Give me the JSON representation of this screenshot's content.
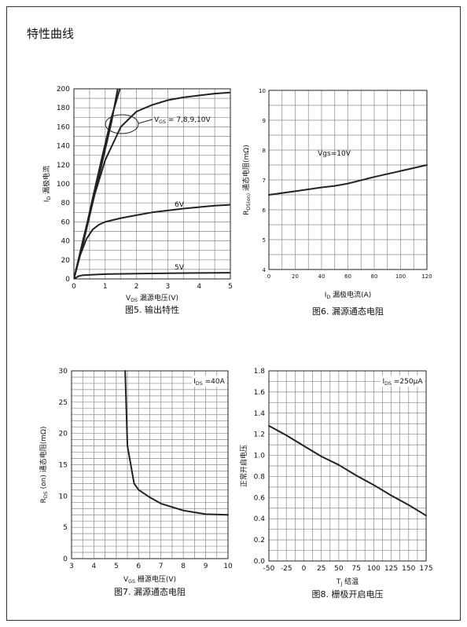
{
  "page": {
    "title": "特性曲线"
  },
  "chart_data": [
    {
      "type": "line",
      "caption": "图5. 输出特性",
      "xlabel": "V DS 漏源电压(V)",
      "ylabel": "I D 漏极电流",
      "xlim": [
        0,
        5
      ],
      "ylim": [
        0,
        200
      ],
      "xticks": [
        0,
        1,
        2,
        3,
        4,
        5
      ],
      "yticks": [
        0,
        20,
        40,
        60,
        80,
        100,
        120,
        140,
        160,
        180,
        200
      ],
      "grid": true,
      "series": [
        {
          "name": "",
          "x": [
            0,
            0.3,
            0.6,
            0.9,
            1.2,
            1.5
          ],
          "y": [
            0,
            40,
            85,
            128,
            170,
            210
          ]
        },
        {
          "name": "",
          "x": [
            0,
            0.3,
            0.6,
            0.9,
            1.2,
            1.4
          ],
          "y": [
            0,
            38,
            80,
            122,
            165,
            200
          ]
        },
        {
          "name": "V GS = 7,8,9,10V",
          "x": [
            0,
            0.3,
            0.6,
            1.0,
            1.5,
            2.0,
            2.5,
            3.0,
            3.5,
            4.0,
            4.5,
            5.0
          ],
          "y": [
            0,
            42,
            82,
            125,
            160,
            176,
            183,
            188,
            191,
            193,
            195,
            196
          ]
        },
        {
          "name": "6V",
          "x": [
            0,
            0.2,
            0.4,
            0.6,
            0.8,
            1.0,
            1.5,
            2.0,
            2.5,
            3.0,
            3.5,
            4.0,
            4.5,
            5.0
          ],
          "y": [
            0,
            25,
            42,
            52,
            57,
            60,
            64,
            67,
            70,
            72,
            74,
            75.5,
            77,
            78
          ]
        },
        {
          "name": "5V",
          "x": [
            0,
            0.15,
            0.3,
            0.6,
            1.0,
            2.0,
            3.0,
            4.0,
            5.0
          ],
          "y": [
            0,
            3,
            4,
            4.5,
            5,
            5.5,
            6,
            6.3,
            6.5
          ]
        }
      ],
      "annotations": [
        "V GS = 7,8,9,10V",
        "6V",
        "5V"
      ]
    },
    {
      "type": "line",
      "caption": "图6. 漏源通态电阻",
      "xlabel": "I D 漏极电流(A)",
      "ylabel": "R DS(on) 通态电阻(mΩ)",
      "xlim": [
        0,
        120
      ],
      "ylim": [
        4,
        10
      ],
      "xticks": [
        0,
        20,
        40,
        60,
        80,
        100,
        120
      ],
      "yticks": [
        4,
        5,
        6,
        7,
        8,
        9,
        10
      ],
      "grid": true,
      "series": [
        {
          "name": "",
          "x": [
            0,
            20,
            40,
            50,
            60,
            80,
            100,
            120
          ],
          "y": [
            6.5,
            6.62,
            6.75,
            6.8,
            6.88,
            7.1,
            7.3,
            7.5
          ]
        }
      ],
      "annotations": [
        "Vgs=10V"
      ]
    },
    {
      "type": "line",
      "caption": "图7. 漏源通态电阻",
      "xlabel": "V GS 栅源电压(V)",
      "ylabel": "R DS (on) 通态电阻(mΩ)",
      "xlim": [
        3,
        10
      ],
      "ylim": [
        0,
        30
      ],
      "xticks": [
        3,
        4,
        5,
        6,
        7,
        8,
        9,
        10
      ],
      "yticks": [
        0,
        5,
        10,
        15,
        20,
        25,
        30
      ],
      "grid": true,
      "series": [
        {
          "name": "",
          "x": [
            5.4,
            5.5,
            5.8,
            6.0,
            6.5,
            7.0,
            8.0,
            9.0,
            10.0
          ],
          "y": [
            30,
            18,
            12,
            11,
            9.8,
            8.8,
            7.7,
            7.1,
            7.0
          ]
        }
      ],
      "annotations": [
        "I DS =40A"
      ]
    },
    {
      "type": "line",
      "caption": "图8. 栅极开启电压",
      "xlabel": "T J 结温",
      "ylabel": "正常开启电压",
      "xlim": [
        -50,
        175
      ],
      "ylim": [
        0.0,
        1.8
      ],
      "xticks": [
        -50,
        -25,
        0,
        25,
        50,
        75,
        100,
        125,
        150,
        175
      ],
      "ytick_labels": [
        "0.0",
        "0.2",
        "0.4",
        "0.6",
        "0.8",
        "1.0",
        "1.2",
        "1.4",
        "1.6",
        "1.8"
      ],
      "yticks": [
        0.0,
        0.2,
        0.4,
        0.6,
        0.8,
        1.0,
        1.2,
        1.4,
        1.6,
        1.8
      ],
      "grid": true,
      "series": [
        {
          "name": "",
          "x": [
            -50,
            -25,
            0,
            25,
            50,
            75,
            100,
            125,
            150,
            175
          ],
          "y": [
            1.28,
            1.19,
            1.09,
            0.99,
            0.91,
            0.81,
            0.72,
            0.62,
            0.53,
            0.43
          ]
        }
      ],
      "annotations": [
        "I DS =250μA"
      ]
    }
  ]
}
